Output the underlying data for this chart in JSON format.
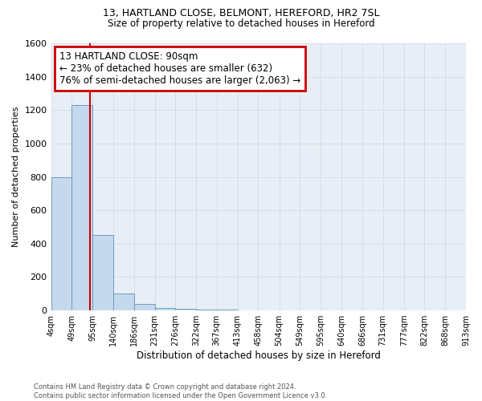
{
  "title": "13, HARTLAND CLOSE, BELMONT, HEREFORD, HR2 7SL",
  "subtitle": "Size of property relative to detached houses in Hereford",
  "xlabel": "Distribution of detached houses by size in Hereford",
  "ylabel": "Number of detached properties",
  "footer_line1": "Contains HM Land Registry data © Crown copyright and database right 2024.",
  "footer_line2": "Contains public sector information licensed under the Open Government Licence v3.0.",
  "annotation_line1": "13 HARTLAND CLOSE: 90sqm",
  "annotation_line2": "← 23% of detached houses are smaller (632)",
  "annotation_line3": "76% of semi-detached houses are larger (2,063) →",
  "property_size": 90,
  "bin_edges": [
    4,
    49,
    95,
    140,
    186,
    231,
    276,
    322,
    367,
    413,
    458,
    504,
    549,
    595,
    640,
    686,
    731,
    777,
    822,
    868,
    913
  ],
  "bin_labels": [
    "4sqm",
    "49sqm",
    "95sqm",
    "140sqm",
    "186sqm",
    "231sqm",
    "276sqm",
    "322sqm",
    "367sqm",
    "413sqm",
    "458sqm",
    "504sqm",
    "549sqm",
    "595sqm",
    "640sqm",
    "686sqm",
    "731sqm",
    "777sqm",
    "822sqm",
    "868sqm",
    "913sqm"
  ],
  "counts": [
    800,
    1230,
    450,
    100,
    40,
    15,
    8,
    4,
    3,
    2,
    1,
    1,
    1,
    0,
    0,
    0,
    0,
    0,
    0,
    0
  ],
  "bar_color": "#c5d9ec",
  "bar_edgecolor": "#6a9cc0",
  "line_color": "#cc0000",
  "annotation_box_edgecolor": "#cc0000",
  "annotation_box_facecolor": "#ffffff",
  "grid_color": "#d0d8e8",
  "background_color": "#ffffff",
  "plot_bg_color": "#e8eef5",
  "ylim": [
    0,
    1600
  ],
  "yticks": [
    0,
    200,
    400,
    600,
    800,
    1000,
    1200,
    1400,
    1600
  ]
}
